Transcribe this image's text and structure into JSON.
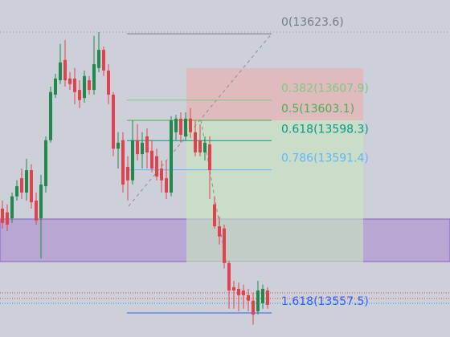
{
  "chart_data": {
    "type": "candlestick",
    "ylim": [
      13551.8,
      13631.6
    ],
    "up_color": "#1f8a4c",
    "down_color": "#e2424c",
    "open": [
      13582.2,
      13581.3,
      13579.9,
      13585.1,
      13589.4,
      13586.0,
      13591.3,
      13584.1,
      13579.9,
      13587.5,
      13598.4,
      13609.2,
      13612.6,
      13617.4,
      13613.0,
      13613.0,
      13610.3,
      13608.4,
      13612.6,
      13610.3,
      13615.5,
      13619.8,
      13614.9,
      13609.2,
      13596.4,
      13598.4,
      13592.1,
      13588.9,
      13598.4,
      13595.1,
      13599.3,
      13595.9,
      13594.6,
      13591.7,
      13589.4,
      13586.0,
      13600.3,
      13603.5,
      13599.3,
      13603.5,
      13600.3,
      13598.4,
      13595.5,
      13597.4,
      13583.2,
      13578.0,
      13577.5,
      13569.3,
      13563.6,
      13563.2,
      13562.8,
      13561.7,
      13560.4,
      13557.9,
      13559.8,
      13562.8
    ],
    "high": [
      13584.1,
      13583.2,
      13586.0,
      13588.9,
      13591.7,
      13594.0,
      13592.7,
      13586.0,
      13590.2,
      13599.3,
      13611.1,
      13614.1,
      13621.2,
      13622.1,
      13614.5,
      13615.5,
      13612.6,
      13614.9,
      13613.6,
      13623.1,
      13624.0,
      13620.6,
      13616.4,
      13609.8,
      13600.3,
      13600.3,
      13594.6,
      13603.1,
      13602.2,
      13600.3,
      13601.2,
      13598.4,
      13596.4,
      13593.6,
      13593.6,
      13604.1,
      13604.4,
      13605.0,
      13605.0,
      13606.0,
      13603.1,
      13602.2,
      13599.3,
      13599.3,
      13585.1,
      13580.3,
      13578.4,
      13569.9,
      13565.1,
      13564.7,
      13564.2,
      13563.2,
      13562.3,
      13565.1,
      13564.2,
      13563.6
    ],
    "low": [
      13577.5,
      13576.9,
      13578.8,
      13584.1,
      13584.5,
      13584.1,
      13582.2,
      13578.4,
      13570.4,
      13586.0,
      13597.8,
      13608.4,
      13611.7,
      13611.1,
      13610.3,
      13606.9,
      13606.0,
      13607.3,
      13609.2,
      13609.2,
      13614.5,
      13613.6,
      13606.9,
      13594.6,
      13591.7,
      13586.0,
      13584.1,
      13587.9,
      13593.6,
      13591.7,
      13591.7,
      13590.8,
      13588.9,
      13586.0,
      13584.5,
      13585.1,
      13598.4,
      13597.8,
      13598.4,
      13598.9,
      13594.6,
      13594.6,
      13593.6,
      13584.5,
      13577.5,
      13573.7,
      13568.0,
      13558.5,
      13558.5,
      13557.9,
      13558.5,
      13557.9,
      13554.7,
      13557.1,
      13558.5,
      13558.5
    ],
    "close": [
      13578.8,
      13578.4,
      13585.1,
      13587.5,
      13586.0,
      13591.3,
      13583.7,
      13579.4,
      13587.9,
      13598.4,
      13609.8,
      13613.0,
      13616.8,
      13612.6,
      13611.7,
      13609.8,
      13607.9,
      13613.6,
      13610.3,
      13616.4,
      13619.8,
      13614.9,
      13609.2,
      13596.4,
      13597.8,
      13587.9,
      13588.9,
      13598.4,
      13595.1,
      13597.8,
      13595.5,
      13591.7,
      13589.8,
      13588.9,
      13586.0,
      13603.1,
      13603.5,
      13599.7,
      13603.5,
      13600.3,
      13595.5,
      13595.5,
      13597.8,
      13591.3,
      13578.0,
      13575.6,
      13569.3,
      13562.8,
      13562.8,
      13561.7,
      13561.7,
      13560.4,
      13557.1,
      13562.8,
      13563.2,
      13559.4
    ],
    "fib_levels": [
      {
        "value": 13623.6,
        "label": "0(13623.6)",
        "color": "#787b86"
      },
      {
        "value": 13607.9,
        "label": "0.382(13607.9)",
        "color": "#81c784"
      },
      {
        "value": 13603.1,
        "label": "0.5(13603.1)",
        "color": "#4caf50"
      },
      {
        "value": 13598.3,
        "label": "0.618(13598.3)",
        "color": "#089981"
      },
      {
        "value": 13591.4,
        "label": "0.786(13591.4)",
        "color": "#64b5f6"
      },
      {
        "value": 13557.5,
        "label": "1.618(13557.5)",
        "color": "#2962ff"
      }
    ]
  }
}
